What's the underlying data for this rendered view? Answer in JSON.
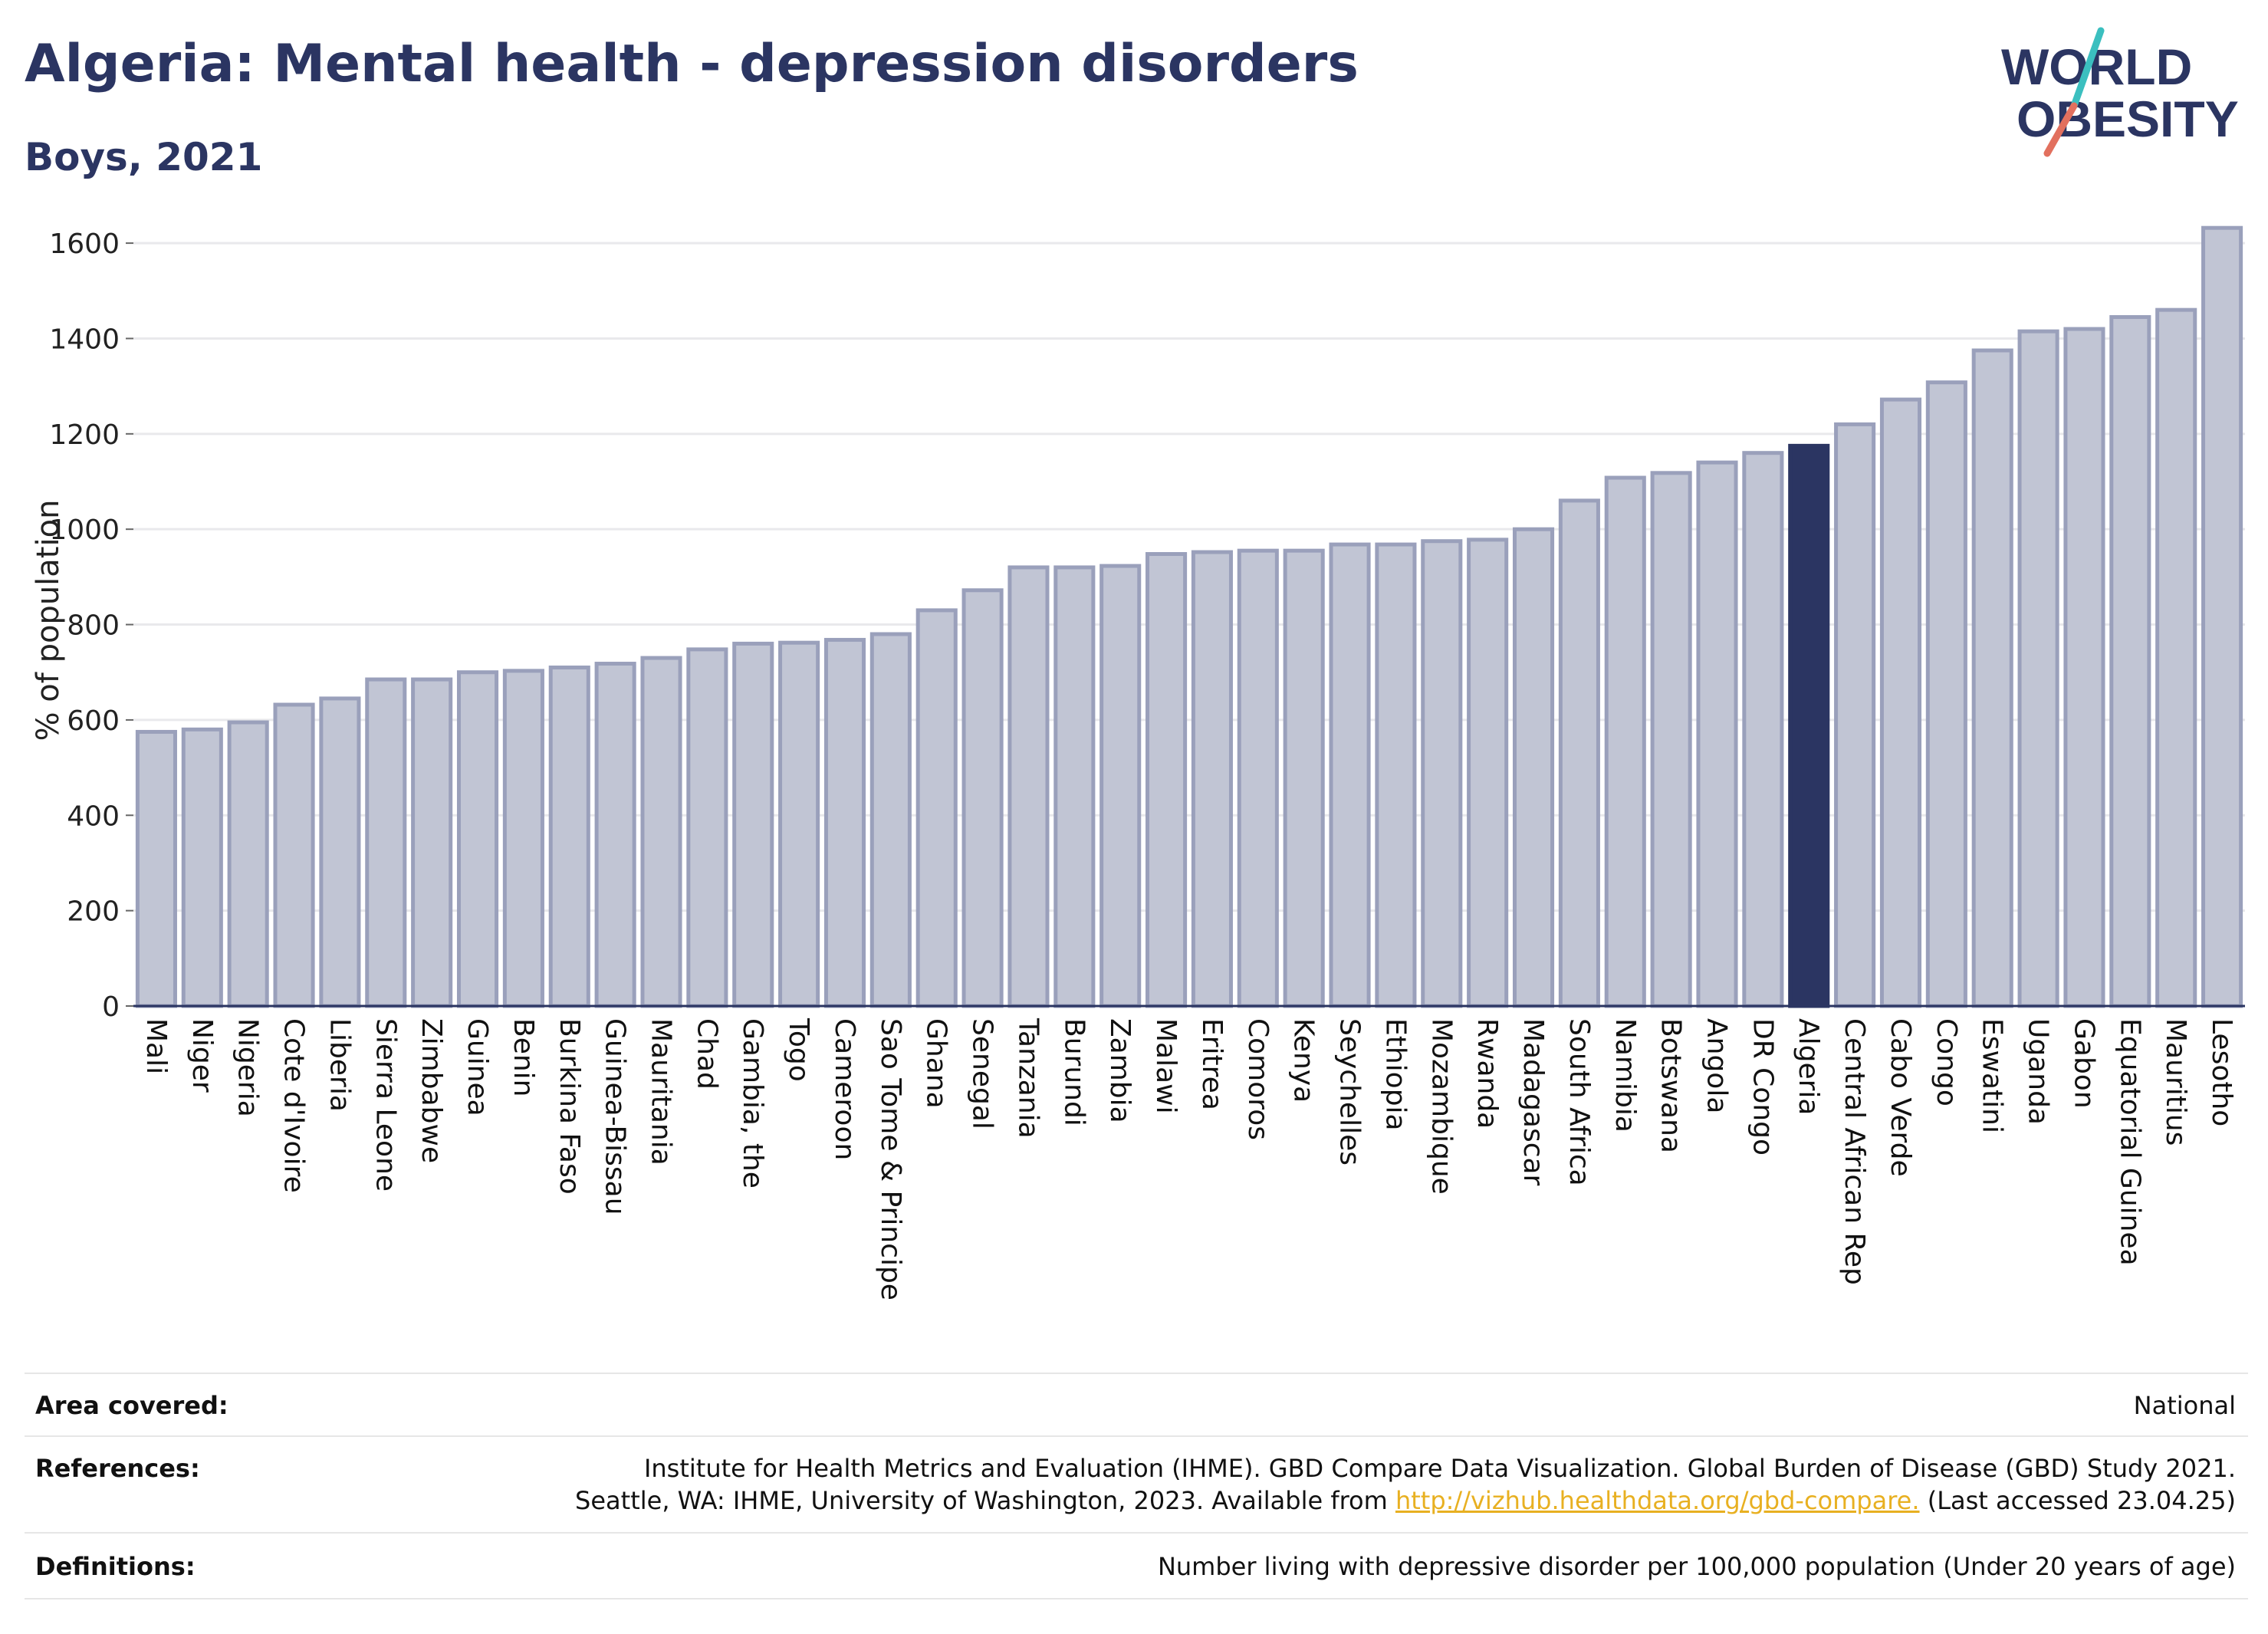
{
  "title": "Algeria: Mental health - depression disorders",
  "subtitle": "Boys, 2021",
  "logo": {
    "line1": "WORLD",
    "line2": "OBESITY"
  },
  "colors": {
    "title": "#2b3562",
    "bar": "#c1c5d4",
    "bar_edge": "#9aa0bb",
    "highlight": "#2b3562",
    "logo_slash_top": "#3bbfbf",
    "logo_slash_bottom": "#e2705e",
    "link": "#e8b021"
  },
  "chart_data": {
    "type": "bar",
    "ylabel": "% of population",
    "xlabel": "",
    "ylim": [
      0,
      1650
    ],
    "yticks": [
      0,
      200,
      400,
      600,
      800,
      1000,
      1200,
      1400,
      1600
    ],
    "grid": true,
    "highlight": "Algeria",
    "categories": [
      "Mali",
      "Niger",
      "Nigeria",
      "Cote d'Ivoire",
      "Liberia",
      "Sierra Leone",
      "Zimbabwe",
      "Guinea",
      "Benin",
      "Burkina Faso",
      "Guinea-Bissau",
      "Mauritania",
      "Chad",
      "Gambia, the",
      "Togo",
      "Cameroon",
      "Sao Tome & Principe",
      "Ghana",
      "Senegal",
      "Tanzania",
      "Burundi",
      "Zambia",
      "Malawi",
      "Eritrea",
      "Comoros",
      "Kenya",
      "Seychelles",
      "Ethiopia",
      "Mozambique",
      "Rwanda",
      "Madagascar",
      "South Africa",
      "Namibia",
      "Botswana",
      "Angola",
      "DR Congo",
      "Algeria",
      "Central African Rep",
      "Cabo Verde",
      "Congo",
      "Eswatini",
      "Uganda",
      "Gabon",
      "Equatorial Guinea",
      "Mauritius",
      "Lesotho"
    ],
    "values": [
      575,
      580,
      595,
      632,
      645,
      685,
      685,
      700,
      703,
      710,
      718,
      730,
      748,
      760,
      762,
      768,
      780,
      830,
      872,
      920,
      920,
      923,
      948,
      952,
      955,
      955,
      968,
      968,
      975,
      978,
      1000,
      1060,
      1108,
      1118,
      1140,
      1160,
      1175,
      1220,
      1272,
      1308,
      1375,
      1415,
      1420,
      1445,
      1460,
      1632
    ]
  },
  "meta": {
    "area_label": "Area covered:",
    "area_value": "National",
    "references_label": "References:",
    "references_line1": "Institute for Health Metrics and Evaluation (IHME). GBD Compare Data Visualization. Global Burden of Disease (GBD) Study 2021.",
    "references_line2_pre": "Seattle, WA: IHME, University of Washington, 2023. Available from ",
    "references_link": "http://vizhub.healthdata.org/gbd-compare.",
    "references_line2_post": " (Last accessed 23.04.25)",
    "definitions_label": "Definitions:",
    "definitions_value": "Number living with depressive disorder per 100,000 population (Under 20 years of age)"
  }
}
